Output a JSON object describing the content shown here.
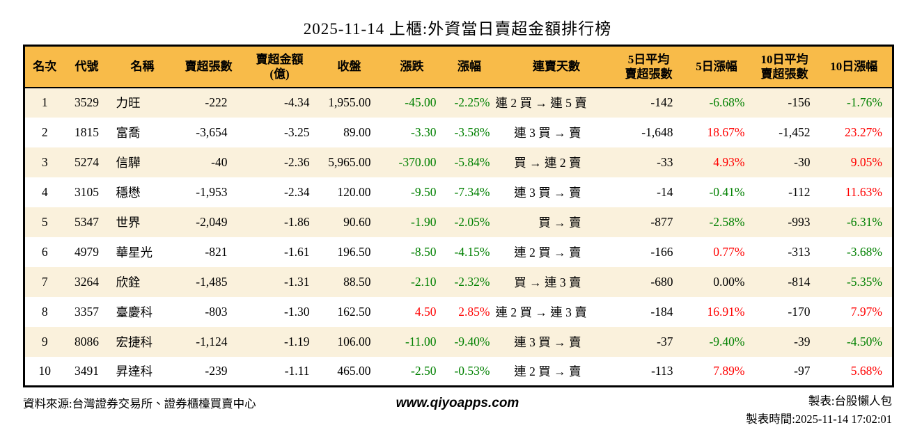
{
  "title": "2025-11-14 上櫃:外資當日賣超金額排行榜",
  "table": {
    "columns": [
      {
        "key": "rank",
        "label": "名次"
      },
      {
        "key": "code",
        "label": "代號"
      },
      {
        "key": "name",
        "label": "名稱"
      },
      {
        "key": "sell_vol",
        "label": "賣超張數"
      },
      {
        "key": "sell_amt",
        "label": "賣超金額\n(億)"
      },
      {
        "key": "close",
        "label": "收盤"
      },
      {
        "key": "chg",
        "label": "漲跌"
      },
      {
        "key": "chg_pct",
        "label": "漲幅"
      },
      {
        "key": "streak",
        "label": "連賣天數"
      },
      {
        "key": "avg5",
        "label": "5日平均\n賣超張數"
      },
      {
        "key": "pct5",
        "label": "5日漲幅"
      },
      {
        "key": "avg10",
        "label": "10日平均\n賣超張數"
      },
      {
        "key": "pct10",
        "label": "10日漲幅"
      }
    ],
    "rows": [
      {
        "rank": "1",
        "code": "3529",
        "name": "力旺",
        "sell_vol": "-222",
        "sell_amt": "-4.34",
        "close": "1,955.00",
        "chg": {
          "v": "-45.00",
          "c": "green"
        },
        "chg_pct": {
          "v": "-2.25%",
          "c": "green"
        },
        "streak": "連 2 買 → 連 5 賣",
        "avg5": "-142",
        "pct5": {
          "v": "-6.68%",
          "c": "green"
        },
        "avg10": "-156",
        "pct10": {
          "v": "-1.76%",
          "c": "green"
        }
      },
      {
        "rank": "2",
        "code": "1815",
        "name": "富喬",
        "sell_vol": "-3,654",
        "sell_amt": "-3.25",
        "close": "89.00",
        "chg": {
          "v": "-3.30",
          "c": "green"
        },
        "chg_pct": {
          "v": "-3.58%",
          "c": "green"
        },
        "streak": "連 3 買 → 賣",
        "avg5": "-1,648",
        "pct5": {
          "v": "18.67%",
          "c": "red"
        },
        "avg10": "-1,452",
        "pct10": {
          "v": "23.27%",
          "c": "red"
        }
      },
      {
        "rank": "3",
        "code": "5274",
        "name": "信驊",
        "sell_vol": "-40",
        "sell_amt": "-2.36",
        "close": "5,965.00",
        "chg": {
          "v": "-370.00",
          "c": "green"
        },
        "chg_pct": {
          "v": "-5.84%",
          "c": "green"
        },
        "streak": "買 → 連 2 賣",
        "avg5": "-33",
        "pct5": {
          "v": "4.93%",
          "c": "red"
        },
        "avg10": "-30",
        "pct10": {
          "v": "9.05%",
          "c": "red"
        }
      },
      {
        "rank": "4",
        "code": "3105",
        "name": "穩懋",
        "sell_vol": "-1,953",
        "sell_amt": "-2.34",
        "close": "120.00",
        "chg": {
          "v": "-9.50",
          "c": "green"
        },
        "chg_pct": {
          "v": "-7.34%",
          "c": "green"
        },
        "streak": "連 3 買 → 賣",
        "avg5": "-14",
        "pct5": {
          "v": "-0.41%",
          "c": "green"
        },
        "avg10": "-112",
        "pct10": {
          "v": "11.63%",
          "c": "red"
        }
      },
      {
        "rank": "5",
        "code": "5347",
        "name": "世界",
        "sell_vol": "-2,049",
        "sell_amt": "-1.86",
        "close": "90.60",
        "chg": {
          "v": "-1.90",
          "c": "green"
        },
        "chg_pct": {
          "v": "-2.05%",
          "c": "green"
        },
        "streak": "買 → 賣",
        "avg5": "-877",
        "pct5": {
          "v": "-2.58%",
          "c": "green"
        },
        "avg10": "-993",
        "pct10": {
          "v": "-6.31%",
          "c": "green"
        }
      },
      {
        "rank": "6",
        "code": "4979",
        "name": "華星光",
        "sell_vol": "-821",
        "sell_amt": "-1.61",
        "close": "196.50",
        "chg": {
          "v": "-8.50",
          "c": "green"
        },
        "chg_pct": {
          "v": "-4.15%",
          "c": "green"
        },
        "streak": "連 2 買 → 賣",
        "avg5": "-166",
        "pct5": {
          "v": "0.77%",
          "c": "red"
        },
        "avg10": "-313",
        "pct10": {
          "v": "-3.68%",
          "c": "green"
        }
      },
      {
        "rank": "7",
        "code": "3264",
        "name": "欣銓",
        "sell_vol": "-1,485",
        "sell_amt": "-1.31",
        "close": "88.50",
        "chg": {
          "v": "-2.10",
          "c": "green"
        },
        "chg_pct": {
          "v": "-2.32%",
          "c": "green"
        },
        "streak": "買 → 連 3 賣",
        "avg5": "-680",
        "pct5": "0.00%",
        "avg10": "-814",
        "pct10": {
          "v": "-5.35%",
          "c": "green"
        }
      },
      {
        "rank": "8",
        "code": "3357",
        "name": "臺慶科",
        "sell_vol": "-803",
        "sell_amt": "-1.30",
        "close": "162.50",
        "chg": {
          "v": "4.50",
          "c": "red"
        },
        "chg_pct": {
          "v": "2.85%",
          "c": "red"
        },
        "streak": "連 2 買 → 連 3 賣",
        "avg5": "-184",
        "pct5": {
          "v": "16.91%",
          "c": "red"
        },
        "avg10": "-170",
        "pct10": {
          "v": "7.97%",
          "c": "red"
        }
      },
      {
        "rank": "9",
        "code": "8086",
        "name": "宏捷科",
        "sell_vol": "-1,124",
        "sell_amt": "-1.19",
        "close": "106.00",
        "chg": {
          "v": "-11.00",
          "c": "green"
        },
        "chg_pct": {
          "v": "-9.40%",
          "c": "green"
        },
        "streak": "連 3 買 → 賣",
        "avg5": "-37",
        "pct5": {
          "v": "-9.40%",
          "c": "green"
        },
        "avg10": "-39",
        "pct10": {
          "v": "-4.50%",
          "c": "green"
        }
      },
      {
        "rank": "10",
        "code": "3491",
        "name": "昇達科",
        "sell_vol": "-239",
        "sell_amt": "-1.11",
        "close": "465.00",
        "chg": {
          "v": "-2.50",
          "c": "green"
        },
        "chg_pct": {
          "v": "-0.53%",
          "c": "green"
        },
        "streak": "連 2 買 → 賣",
        "avg5": "-113",
        "pct5": {
          "v": "7.89%",
          "c": "red"
        },
        "avg10": "-97",
        "pct10": {
          "v": "5.68%",
          "c": "red"
        }
      }
    ]
  },
  "footer": {
    "source": "資料來源:台灣證券交易所、證券櫃檯買賣中心",
    "url": "www.qiyoapps.com",
    "maker": "製表:台股懶人包",
    "time": "製表時間:2025-11-14 17:02:01"
  },
  "colors": {
    "header_bg": "#F8BB49",
    "row_alt_bg": "#FAF1DC",
    "positive_red": "#FF0000",
    "negative_green": "#008000",
    "border": "#000000"
  },
  "chart_data": {
    "type": "table",
    "title": "2025-11-14 上櫃:外資當日賣超金額排行榜",
    "columns": [
      "名次",
      "代號",
      "名稱",
      "賣超張數",
      "賣超金額(億)",
      "收盤",
      "漲跌",
      "漲幅",
      "連賣天數",
      "5日平均賣超張數",
      "5日漲幅",
      "10日平均賣超張數",
      "10日漲幅"
    ],
    "rows": [
      [
        1,
        "3529",
        "力旺",
        -222,
        -4.34,
        1955.0,
        -45.0,
        "-2.25%",
        "連 2 買 → 連 5 賣",
        -142,
        "-6.68%",
        -156,
        "-1.76%"
      ],
      [
        2,
        "1815",
        "富喬",
        -3654,
        -3.25,
        89.0,
        -3.3,
        "-3.58%",
        "連 3 買 → 賣",
        -1648,
        "18.67%",
        -1452,
        "23.27%"
      ],
      [
        3,
        "5274",
        "信驊",
        -40,
        -2.36,
        5965.0,
        -370.0,
        "-5.84%",
        "買 → 連 2 賣",
        -33,
        "4.93%",
        -30,
        "9.05%"
      ],
      [
        4,
        "3105",
        "穩懋",
        -1953,
        -2.34,
        120.0,
        -9.5,
        "-7.34%",
        "連 3 買 → 賣",
        -14,
        "-0.41%",
        -112,
        "11.63%"
      ],
      [
        5,
        "5347",
        "世界",
        -2049,
        -1.86,
        90.6,
        -1.9,
        "-2.05%",
        "買 → 賣",
        -877,
        "-2.58%",
        -993,
        "-6.31%"
      ],
      [
        6,
        "4979",
        "華星光",
        -821,
        -1.61,
        196.5,
        -8.5,
        "-4.15%",
        "連 2 買 → 賣",
        -166,
        "0.77%",
        -313,
        "-3.68%"
      ],
      [
        7,
        "3264",
        "欣銓",
        -1485,
        -1.31,
        88.5,
        -2.1,
        "-2.32%",
        "買 → 連 3 賣",
        -680,
        "0.00%",
        -814,
        "-5.35%"
      ],
      [
        8,
        "3357",
        "臺慶科",
        -803,
        -1.3,
        162.5,
        4.5,
        "2.85%",
        "連 2 買 → 連 3 賣",
        -184,
        "16.91%",
        -170,
        "7.97%"
      ],
      [
        9,
        "8086",
        "宏捷科",
        -1124,
        -1.19,
        106.0,
        -11.0,
        "-9.40%",
        "連 3 買 → 賣",
        -37,
        "-9.40%",
        -39,
        "-4.50%"
      ],
      [
        10,
        "3491",
        "昇達科",
        -239,
        -1.11,
        465.0,
        -2.5,
        "-0.53%",
        "連 2 買 → 賣",
        -113,
        "7.89%",
        -97,
        "5.68%"
      ]
    ]
  }
}
